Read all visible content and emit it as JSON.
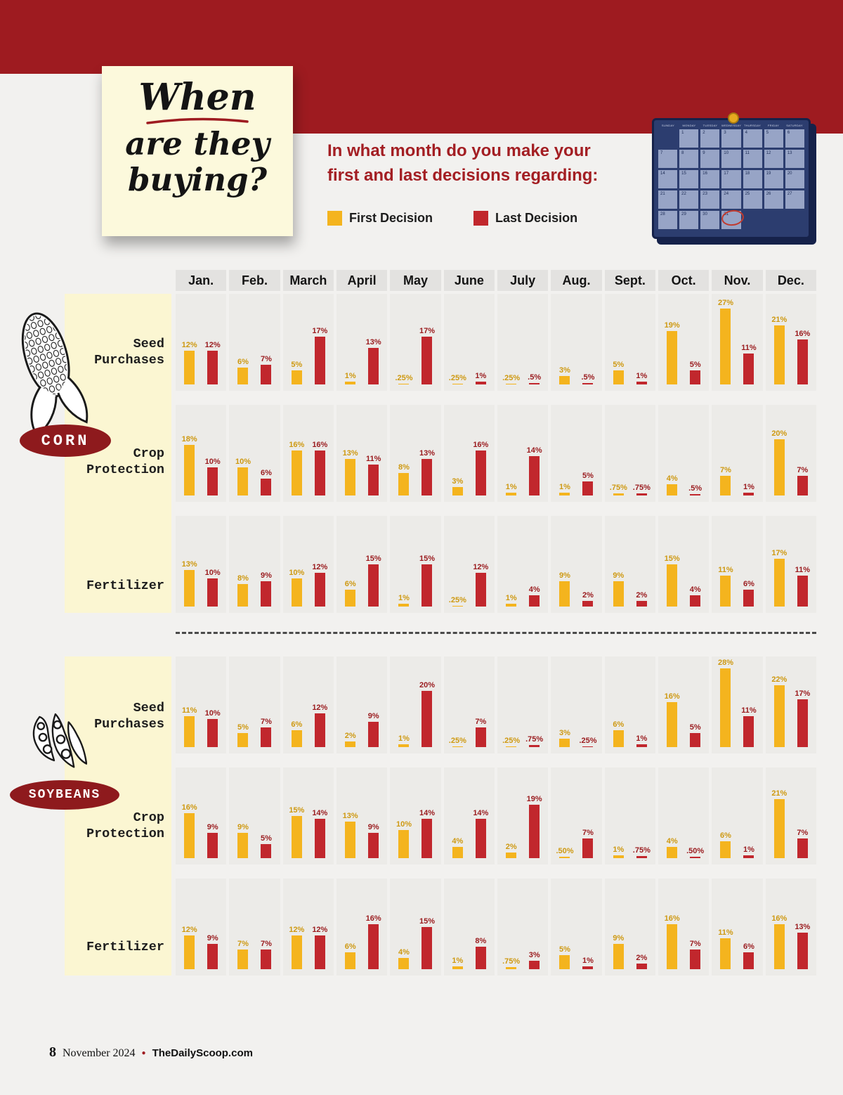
{
  "note": {
    "line1": "When",
    "line2": "are they",
    "line3": "buying?"
  },
  "header": {
    "question_line1": "In what month do you make your",
    "question_line2": "first and last decisions regarding:",
    "legend": {
      "first": "First Decision",
      "last": "Last Decision"
    }
  },
  "calendar": {
    "day_names": [
      "SUNDAY",
      "MONDAY",
      "TUESDAY",
      "WEDNESDAY",
      "THURSDAY",
      "FRIDAY",
      "SATURDAY"
    ]
  },
  "colors": {
    "banner_maroon": "#9E1B20",
    "first_bar": "#F4B41E",
    "last_bar": "#C1272D",
    "first_label": "#CE9912",
    "last_label": "#9A1B1E"
  },
  "footer": {
    "page_number": "8",
    "date": "November 2024",
    "site": "TheDailyScoop.com"
  },
  "chart_data": {
    "type": "bar",
    "unit": "%",
    "value_format": "percent",
    "ylim": [
      0,
      28
    ],
    "legend_position": "top",
    "categories": [
      "Jan.",
      "Feb.",
      "March",
      "April",
      "May",
      "June",
      "July",
      "Aug.",
      "Sept.",
      "Oct.",
      "Nov.",
      "Dec."
    ],
    "series_names": [
      "First Decision",
      "Last Decision"
    ],
    "groups": [
      {
        "group": "CORN",
        "rows": [
          {
            "label": "Seed Purchases",
            "first": [
              "12%",
              "6%",
              "5%",
              "1%",
              ".25%",
              ".25%",
              ".25%",
              "3%",
              "5%",
              "19%",
              "27%",
              "21%"
            ],
            "last": [
              "12%",
              "7%",
              "17%",
              "13%",
              "17%",
              "1%",
              ".5%",
              ".5%",
              "1%",
              "5%",
              "11%",
              "16%"
            ]
          },
          {
            "label": "Crop Protection",
            "first": [
              "18%",
              "10%",
              "16%",
              "13%",
              "8%",
              "3%",
              "1%",
              "1%",
              ".75%",
              "4%",
              "7%",
              "20%"
            ],
            "last": [
              "10%",
              "6%",
              "16%",
              "11%",
              "13%",
              "16%",
              "14%",
              "5%",
              ".75%",
              ".5%",
              "1%",
              "7%"
            ]
          },
          {
            "label": "Fertilizer",
            "first": [
              "13%",
              "8%",
              "10%",
              "6%",
              "1%",
              ".25%",
              "1%",
              "9%",
              "9%",
              "15%",
              "11%",
              "17%"
            ],
            "last": [
              "10%",
              "9%",
              "12%",
              "15%",
              "15%",
              "12%",
              "4%",
              "2%",
              "2%",
              "4%",
              "6%",
              "11%"
            ]
          }
        ]
      },
      {
        "group": "SOYBEANS",
        "rows": [
          {
            "label": "Seed Purchases",
            "first": [
              "11%",
              "5%",
              "6%",
              "2%",
              "1%",
              ".25%",
              ".25%",
              "3%",
              "6%",
              "16%",
              "28%",
              "22%"
            ],
            "last": [
              "10%",
              "7%",
              "12%",
              "9%",
              "20%",
              "7%",
              ".75%",
              ".25%",
              "1%",
              "5%",
              "11%",
              "17%"
            ]
          },
          {
            "label": "Crop Protection",
            "first": [
              "16%",
              "9%",
              "15%",
              "13%",
              "10%",
              "4%",
              "2%",
              ".50%",
              "1%",
              "4%",
              "6%",
              "21%"
            ],
            "last": [
              "9%",
              "5%",
              "14%",
              "9%",
              "14%",
              "14%",
              "19%",
              "7%",
              ".75%",
              ".50%",
              "1%",
              "7%"
            ]
          },
          {
            "label": "Fertilizer",
            "first": [
              "12%",
              "7%",
              "12%",
              "6%",
              "4%",
              "1%",
              ".75%",
              "5%",
              "9%",
              "16%",
              "11%",
              "16%"
            ],
            "last": [
              "9%",
              "7%",
              "12%",
              "16%",
              "15%",
              "8%",
              "3%",
              "1%",
              "2%",
              "7%",
              "6%",
              "13%"
            ]
          }
        ]
      }
    ]
  }
}
